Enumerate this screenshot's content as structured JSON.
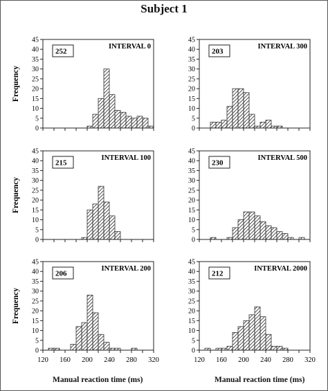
{
  "title": "Subject  1",
  "x_axis_label": "Manual reaction time (ms)",
  "y_axis_label": "Frequency",
  "chart_data": [
    {
      "type": "bar",
      "panel": "left-1",
      "label": "INTERVAL 0",
      "n_box": "252",
      "ylabel": "Frequency",
      "ylim": [
        0,
        45
      ],
      "yticks": [
        0,
        5,
        10,
        15,
        20,
        25,
        30,
        35,
        40,
        45
      ],
      "xlim": [
        120,
        320
      ],
      "bin_width": 10,
      "bin_starts": [
        200,
        210,
        220,
        230,
        240,
        250,
        260,
        270,
        280,
        290,
        300,
        310
      ],
      "values": [
        1,
        7,
        15,
        30,
        17,
        9,
        8,
        6,
        5,
        6,
        5,
        1
      ]
    },
    {
      "type": "bar",
      "panel": "right-1",
      "label": "INTERVAL 300",
      "n_box": "203",
      "ylabel": "",
      "ylim": [
        0,
        45
      ],
      "yticks": [
        0,
        5,
        10,
        15,
        20,
        25,
        30,
        35,
        40,
        45
      ],
      "xlim": [
        120,
        320
      ],
      "bin_width": 10,
      "bin_starts": [
        140,
        150,
        160,
        170,
        180,
        190,
        200,
        210,
        220,
        230,
        240,
        250,
        260,
        270
      ],
      "values": [
        3,
        3,
        4,
        11,
        20,
        20,
        18,
        7,
        1,
        3,
        4,
        1,
        1,
        0
      ]
    },
    {
      "type": "bar",
      "panel": "left-2",
      "label": "INTERVAL 100",
      "n_box": "215",
      "ylabel": "Frequency",
      "ylim": [
        0,
        45
      ],
      "yticks": [
        0,
        5,
        10,
        15,
        20,
        25,
        30,
        35,
        40,
        45
      ],
      "xlim": [
        120,
        320
      ],
      "bin_width": 10,
      "bin_starts": [
        190,
        200,
        210,
        220,
        230,
        240,
        250
      ],
      "values": [
        1,
        15,
        18,
        27,
        19,
        12,
        4
      ]
    },
    {
      "type": "bar",
      "panel": "right-2",
      "label": "INTERVAL 500",
      "n_box": "230",
      "ylabel": "",
      "ylim": [
        0,
        45
      ],
      "yticks": [
        0,
        5,
        10,
        15,
        20,
        25,
        30,
        35,
        40,
        45
      ],
      "xlim": [
        120,
        320
      ],
      "bin_width": 10,
      "bin_starts": [
        140,
        170,
        180,
        190,
        200,
        210,
        220,
        230,
        240,
        250,
        260,
        270,
        280,
        300
      ],
      "values": [
        1,
        1,
        6,
        10,
        14,
        14,
        12,
        9,
        7,
        6,
        4,
        3,
        1,
        1
      ]
    },
    {
      "type": "bar",
      "panel": "left-3",
      "label": "INTERVAL  200",
      "n_box": "206",
      "ylabel": "Frequency",
      "ylim": [
        0,
        45
      ],
      "yticks": [
        0,
        5,
        10,
        15,
        20,
        25,
        30,
        35,
        40,
        45
      ],
      "xlim": [
        120,
        320
      ],
      "bin_width": 10,
      "bin_starts": [
        130,
        140,
        170,
        180,
        190,
        200,
        210,
        220,
        230,
        240,
        250,
        280
      ],
      "values": [
        1,
        1,
        3,
        12,
        14,
        28,
        19,
        8,
        4,
        1,
        1,
        1
      ],
      "xticks": [
        120,
        140,
        160,
        180,
        200,
        220,
        240,
        260,
        280,
        300,
        320
      ],
      "xtick_labels": [
        "120",
        "",
        "160",
        "",
        "200",
        "",
        "240",
        "",
        "280",
        "",
        "320"
      ]
    },
    {
      "type": "bar",
      "panel": "right-3",
      "label": "INTERVAL  2000",
      "n_box": "212",
      "ylabel": "",
      "ylim": [
        0,
        45
      ],
      "yticks": [
        0,
        5,
        10,
        15,
        20,
        25,
        30,
        35,
        40,
        45
      ],
      "xlim": [
        120,
        320
      ],
      "bin_width": 10,
      "bin_starts": [
        130,
        150,
        160,
        170,
        180,
        190,
        200,
        210,
        220,
        230,
        240,
        250,
        260,
        270
      ],
      "values": [
        1,
        1,
        1,
        2,
        9,
        12,
        15,
        18,
        22,
        17,
        8,
        2,
        2,
        1
      ],
      "xticks": [
        120,
        140,
        160,
        180,
        200,
        220,
        240,
        260,
        280,
        300,
        320
      ],
      "xtick_labels": [
        "120",
        "",
        "160",
        "",
        "200",
        "",
        "240",
        "",
        "280",
        "",
        "320"
      ]
    }
  ],
  "colors": {
    "axis": "#222222",
    "hatch": "#333333",
    "frame": "#555555"
  }
}
